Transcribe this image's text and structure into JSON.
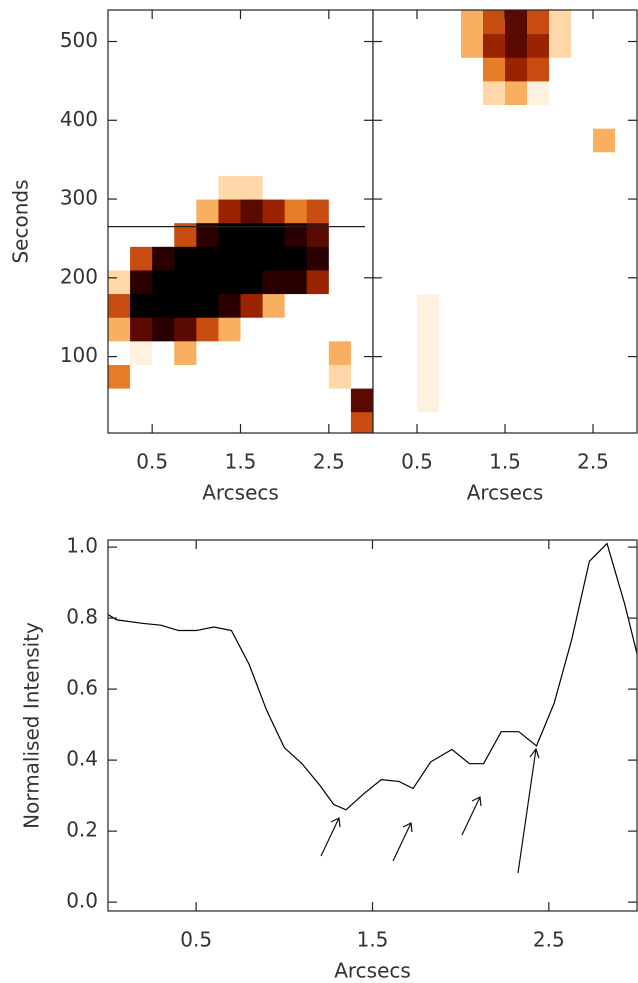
{
  "chart_data": [
    {
      "type": "heatmap",
      "xlabel": "Arcsecs",
      "ylabel": "Seconds",
      "xlim": [
        0,
        3
      ],
      "ylim": [
        3,
        540
      ],
      "xticks": [
        0.5,
        1.5,
        2.5
      ],
      "yticks": [
        100,
        200,
        300,
        400,
        500
      ],
      "xbins": [
        0,
        0.25,
        0.5,
        0.75,
        1,
        1.25,
        1.5,
        1.75,
        2,
        2.25,
        2.5,
        2.75,
        3
      ],
      "ybins": [
        0,
        30,
        60,
        90,
        120,
        150,
        180,
        210,
        240,
        270,
        300,
        330,
        360,
        390,
        420,
        450,
        480,
        510,
        540
      ],
      "colormap": [
        "#ffffff",
        "#fff1e0",
        "#ffd7a8",
        "#f8b060",
        "#e87d28",
        "#c84c10",
        "#9a2400",
        "#5a0a00",
        "#2a0000",
        "#000000"
      ],
      "hline": 265,
      "values": [
        [
          0,
          0,
          0,
          0,
          0,
          0,
          0,
          0,
          0,
          0,
          0,
          5
        ],
        [
          0,
          0,
          0,
          0,
          0,
          0,
          0,
          0,
          0,
          0,
          0,
          7
        ],
        [
          4,
          0,
          0,
          0,
          0,
          0,
          0,
          0,
          0,
          0,
          2,
          0
        ],
        [
          0,
          1,
          0,
          3,
          0,
          0,
          0,
          0,
          0,
          0,
          3,
          0
        ],
        [
          3,
          7,
          8,
          7,
          5,
          3,
          0,
          0,
          0,
          0,
          0,
          0
        ],
        [
          5,
          9,
          9,
          9,
          9,
          8,
          6,
          3,
          0,
          0,
          0,
          0
        ],
        [
          2,
          8,
          9,
          9,
          9,
          9,
          9,
          8,
          8,
          6,
          0,
          0
        ],
        [
          0,
          5,
          8,
          9,
          9,
          9,
          9,
          9,
          9,
          8,
          0,
          0
        ],
        [
          0,
          0,
          0,
          5,
          8,
          9,
          9,
          9,
          8,
          7,
          0,
          0
        ],
        [
          0,
          0,
          0,
          0,
          3,
          6,
          7,
          6,
          4,
          5,
          0,
          0
        ],
        [
          0,
          0,
          0,
          0,
          0,
          2,
          2,
          0,
          0,
          0,
          0,
          0
        ],
        [
          0,
          0,
          0,
          0,
          0,
          0,
          0,
          0,
          0,
          0,
          0,
          0
        ],
        [
          0,
          0,
          0,
          0,
          0,
          0,
          0,
          0,
          0,
          0,
          0,
          0
        ],
        [
          0,
          0,
          0,
          0,
          0,
          0,
          0,
          0,
          0,
          0,
          0,
          0
        ],
        [
          0,
          0,
          0,
          0,
          0,
          0,
          0,
          0,
          0,
          0,
          0,
          0
        ],
        [
          0,
          0,
          0,
          0,
          0,
          0,
          0,
          0,
          0,
          0,
          0,
          0
        ],
        [
          0,
          0,
          0,
          0,
          0,
          0,
          0,
          0,
          0,
          0,
          0,
          0
        ],
        [
          0,
          0,
          0,
          0,
          0,
          0,
          0,
          0,
          0,
          0,
          0,
          0
        ]
      ]
    },
    {
      "type": "heatmap",
      "xlabel": "Arcsecs",
      "xlim": [
        0,
        3
      ],
      "ylim": [
        3,
        540
      ],
      "xticks": [
        0.5,
        1.5,
        2.5
      ],
      "yticks": [
        100,
        200,
        300,
        400,
        500
      ],
      "xbins": [
        0,
        0.25,
        0.5,
        0.75,
        1,
        1.25,
        1.5,
        1.75,
        2,
        2.25,
        2.5,
        2.75,
        3
      ],
      "ybins": [
        0,
        30,
        60,
        90,
        120,
        150,
        180,
        210,
        240,
        270,
        300,
        330,
        360,
        390,
        420,
        450,
        480,
        510,
        540
      ],
      "colormap": [
        "#ffffff",
        "#fff1e0",
        "#ffd7a8",
        "#f8b060",
        "#e87d28",
        "#c84c10",
        "#9a2400",
        "#5a0a00",
        "#2a0000",
        "#000000"
      ],
      "values": [
        [
          0,
          0,
          0,
          0,
          0,
          0,
          0,
          0,
          0,
          0,
          0,
          0
        ],
        [
          0,
          0,
          1,
          0,
          0,
          0,
          0,
          0,
          0,
          0,
          0,
          0
        ],
        [
          0,
          0,
          1,
          0,
          0,
          0,
          0,
          0,
          0,
          0,
          0,
          0
        ],
        [
          0,
          0,
          1,
          0,
          0,
          0,
          0,
          0,
          0,
          0,
          0,
          0
        ],
        [
          0,
          0,
          1,
          0,
          0,
          0,
          0,
          0,
          0,
          0,
          0,
          0
        ],
        [
          0,
          0,
          1,
          0,
          0,
          0,
          0,
          0,
          0,
          0,
          0,
          0
        ],
        [
          0,
          0,
          0,
          0,
          0,
          0,
          0,
          0,
          0,
          0,
          0,
          0
        ],
        [
          0,
          0,
          0,
          0,
          0,
          0,
          0,
          0,
          0,
          0,
          0,
          0
        ],
        [
          0,
          0,
          0,
          0,
          0,
          0,
          0,
          0,
          0,
          0,
          0,
          0
        ],
        [
          0,
          0,
          0,
          0,
          0,
          0,
          0,
          0,
          0,
          0,
          0,
          0
        ],
        [
          0,
          0,
          0,
          0,
          0,
          0,
          0,
          0,
          0,
          0,
          0,
          0
        ],
        [
          0,
          0,
          0,
          0,
          0,
          0,
          0,
          0,
          0,
          0,
          0,
          0
        ],
        [
          0,
          0,
          0,
          0,
          0,
          0,
          0,
          0,
          0,
          0,
          3,
          0
        ],
        [
          0,
          0,
          0,
          0,
          0,
          0,
          0,
          0,
          0,
          0,
          0,
          0
        ],
        [
          0,
          0,
          0,
          0,
          0,
          2,
          3,
          1,
          0,
          0,
          0,
          0
        ],
        [
          0,
          0,
          0,
          0,
          0,
          4,
          6,
          5,
          0,
          0,
          0,
          0
        ],
        [
          0,
          0,
          0,
          0,
          3,
          6,
          7,
          6,
          2,
          0,
          0,
          0
        ],
        [
          0,
          0,
          0,
          0,
          3,
          5,
          7,
          5,
          2,
          0,
          0,
          0
        ]
      ]
    },
    {
      "type": "line",
      "xlabel": "Arcsecs",
      "ylabel": "Normalised Intensity",
      "color": "#000000",
      "xlim": [
        0,
        3
      ],
      "ylim": [
        -0.025,
        1.02
      ],
      "xticks": [
        0.5,
        1.5,
        2.5
      ],
      "yticks": [
        {
          "value": 0,
          "label": "0.0"
        },
        0.2,
        0.4,
        0.6,
        0.8,
        {
          "value": 1,
          "label": "1.0"
        }
      ],
      "x": [
        0,
        0.05,
        0.2,
        0.3,
        0.4,
        0.5,
        0.6,
        0.7,
        0.8,
        0.9,
        1.0,
        1.1,
        1.2,
        1.28,
        1.35,
        1.45,
        1.55,
        1.65,
        1.73,
        1.83,
        1.95,
        2.05,
        2.13,
        2.23,
        2.33,
        2.43,
        2.53,
        2.63,
        2.73,
        2.83,
        2.93,
        3.0
      ],
      "values": [
        0.81,
        0.795,
        0.785,
        0.78,
        0.765,
        0.765,
        0.775,
        0.765,
        0.67,
        0.54,
        0.435,
        0.39,
        0.33,
        0.275,
        0.26,
        0.305,
        0.345,
        0.34,
        0.32,
        0.395,
        0.43,
        0.39,
        0.39,
        0.48,
        0.48,
        0.44,
        0.56,
        0.74,
        0.96,
        1.01,
        0.84,
        0.7
      ]
    }
  ]
}
